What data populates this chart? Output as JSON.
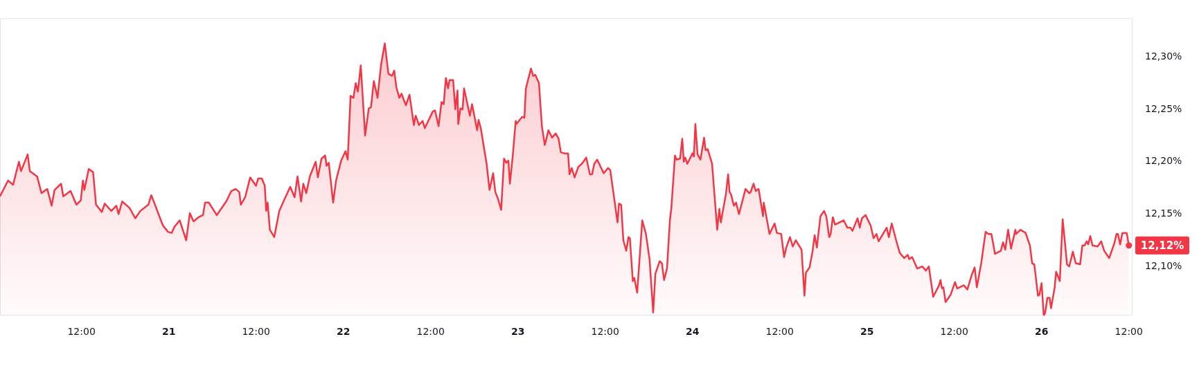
{
  "chart_data": {
    "type": "area",
    "legend": false,
    "grid": false,
    "xlim": [
      "--01-20T00:48",
      "--01-26T12:30"
    ],
    "ylim": [
      12.053,
      12.337
    ],
    "xticks": [
      {
        "value": "--01-20T12:00",
        "label": "12:00"
      },
      {
        "value": "--01-21",
        "label": "21"
      },
      {
        "value": "--01-21T12:00",
        "label": "12:00"
      },
      {
        "value": "--01-22",
        "label": "22"
      },
      {
        "value": "--01-22T12:00",
        "label": "12:00"
      },
      {
        "value": "--01-23",
        "label": "23"
      },
      {
        "value": "--01-23T12:00",
        "label": "12:00"
      },
      {
        "value": "--01-24",
        "label": "24"
      },
      {
        "value": "--01-24T12:00",
        "label": "12:00"
      },
      {
        "value": "--01-25",
        "label": "25"
      },
      {
        "value": "--01-25T12:00",
        "label": "12:00"
      },
      {
        "value": "--01-26",
        "label": "26"
      },
      {
        "value": "--01-26T12:00",
        "label": "12:00"
      }
    ],
    "yticks": [
      {
        "value": 12.1,
        "label": "12,10%"
      },
      {
        "value": 12.15,
        "label": "12,15%"
      },
      {
        "value": 12.2,
        "label": "12,20%"
      },
      {
        "value": 12.25,
        "label": "12,25%"
      },
      {
        "value": 12.3,
        "label": "12,30%"
      }
    ],
    "annotations": [
      {
        "text": "12,12%",
        "x": "--01-26T12:00",
        "y": 12.12
      }
    ],
    "series": [
      {
        "color": "#f23645",
        "x": [
          "--01-20T00:48",
          "--01-20T01:54",
          "--01-20T02:36",
          "--01-20T03:24",
          "--01-20T03:42",
          "--01-20T04:36",
          "--01-20T04:54",
          "--01-20T05:54",
          "--01-20T06:30",
          "--01-20T07:18",
          "--01-20T07:54",
          "--01-20T08:18",
          "--01-20T09:12",
          "--01-20T09:30",
          "--01-20T10:30",
          "--01-20T11:18",
          "--01-20T11:54",
          "--01-20T12:12",
          "--01-20T12:24",
          "--01-20T13:00",
          "--01-20T13:36",
          "--01-20T14:00",
          "--01-20T14:48",
          "--01-20T15:12",
          "--01-20T16:06",
          "--01-20T16:48",
          "--01-20T17:06",
          "--01-20T17:36",
          "--01-20T18:36",
          "--01-20T19:24",
          "--01-20T20:06",
          "--01-20T21:12",
          "--01-20T21:36",
          "--01-20T22:06",
          "--01-20T23:12",
          "--01-20T23:54",
          "--01-21T00:24",
          "--01-21T00:48",
          "--01-21T01:30",
          "--01-21T02:24",
          "--01-21T02:54",
          "--01-21T03:24",
          "--01-21T04:06",
          "--01-21T04:42",
          "--01-21T05:00",
          "--01-21T05:30",
          "--01-21T06:36",
          "--01-21T07:54",
          "--01-21T08:36",
          "--01-21T09:12",
          "--01-21T09:42",
          "--01-21T09:54",
          "--01-21T10:30",
          "--01-21T11:12",
          "--01-21T12:00",
          "--01-21T12:18",
          "--01-21T12:48",
          "--01-21T13:12",
          "--01-21T13:24",
          "--01-21T13:36",
          "--01-21T13:54",
          "--01-21T14:30",
          "--01-21T15:12",
          "--01-21T15:54",
          "--01-21T16:42",
          "--01-21T17:18",
          "--01-21T17:42",
          "--01-21T18:12",
          "--01-21T18:30",
          "--01-21T18:54",
          "--01-21T19:24",
          "--01-21T20:12",
          "--01-21T20:30",
          "--01-21T21:00",
          "--01-21T21:30",
          "--01-21T21:42",
          "--01-21T22:00",
          "--01-21T22:36",
          "--01-21T23:00",
          "--01-21T23:42",
          "--01-22T00:18",
          "--01-22T00:36",
          "--01-22T01:00",
          "--01-22T01:24",
          "--01-22T01:42",
          "--01-22T02:00",
          "--01-22T02:24",
          "--01-22T03:00",
          "--01-22T03:30",
          "--01-22T03:48",
          "--01-22T04:12",
          "--01-22T04:42",
          "--01-22T05:12",
          "--01-22T05:42",
          "--01-22T06:12",
          "--01-22T06:42",
          "--01-22T07:00",
          "--01-22T07:18",
          "--01-22T07:42",
          "--01-22T08:00",
          "--01-22T08:36",
          "--01-22T09:06",
          "--01-22T09:42",
          "--01-22T09:57",
          "--01-22T10:24",
          "--01-22T10:54",
          "--01-22T11:12",
          "--01-22T12:18",
          "--01-22T12:36",
          "--01-22T13:06",
          "--01-22T13:30",
          "--01-22T13:48",
          "--01-22T14:06",
          "--01-22T14:24",
          "--01-22T14:36",
          "--01-22T15:06",
          "--01-22T15:24",
          "--01-22T15:42",
          "--01-22T15:48",
          "--01-22T16:06",
          "--01-22T16:24",
          "--01-22T16:36",
          "--01-22T17:24",
          "--01-22T17:42",
          "--01-22T18:24",
          "--01-22T18:36",
          "--01-22T18:54",
          "--01-22T19:42",
          "--01-22T20:06",
          "--01-22T20:36",
          "--01-22T20:54",
          "--01-22T21:18",
          "--01-22T21:42",
          "--01-22T22:06",
          "--01-22T22:24",
          "--01-22T22:42",
          "--01-22T22:54",
          "--01-22T23:18",
          "--01-22T23:42",
          "--01-22T23:48",
          "--01-23T00:36",
          "--01-23T00:54",
          "--01-23T01:06",
          "--01-23T01:48",
          "--01-23T02:06",
          "--01-23T02:24",
          "--01-23T02:54",
          "--01-23T03:18",
          "--01-23T03:42",
          "--01-23T04:12",
          "--01-23T04:42",
          "--01-23T05:12",
          "--01-23T05:36",
          "--01-23T05:54",
          "--01-23T06:24",
          "--01-23T06:54",
          "--01-23T07:06",
          "--01-23T07:24",
          "--01-23T07:48",
          "--01-23T08:18",
          "--01-23T08:48",
          "--01-23T09:24",
          "--01-23T09:54",
          "--01-23T10:12",
          "--01-23T10:30",
          "--01-23T10:54",
          "--01-23T11:48",
          "--01-23T12:24",
          "--01-23T12:42",
          "--01-23T13:42",
          "--01-23T13:54",
          "--01-23T14:12",
          "--01-23T14:30",
          "--01-23T14:54",
          "--01-23T15:12",
          "--01-23T15:24",
          "--01-23T15:48",
          "--01-23T16:00",
          "--01-23T16:24",
          "--01-23T17:06",
          "--01-23T17:36",
          "--01-23T18:06",
          "--01-23T18:36",
          "--01-23T18:54",
          "--01-23T19:30",
          "--01-23T19:48",
          "--01-23T20:06",
          "--01-23T20:30",
          "--01-23T20:54",
          "--01-23T21:06",
          "--01-23T21:36",
          "--01-23T21:48",
          "--01-23T22:18",
          "--01-23T22:36",
          "--01-23T22:48",
          "--01-23T23:00",
          "--01-23T23:18",
          "--01-24T00:00",
          "--01-24T00:12",
          "--01-24T00:24",
          "--01-24T00:42",
          "--01-24T01:06",
          "--01-24T01:36",
          "--01-24T01:48",
          "--01-24T02:06",
          "--01-24T02:42",
          "--01-24T03:24",
          "--01-24T03:42",
          "--01-24T03:54",
          "--01-24T04:36",
          "--01-24T04:54",
          "--01-24T05:06",
          "--01-24T05:18",
          "--01-24T05:42",
          "--01-24T06:00",
          "--01-24T06:24",
          "--01-24T06:42",
          "--01-24T07:18",
          "--01-24T07:48",
          "--01-24T08:00",
          "--01-24T08:24",
          "--01-24T08:42",
          "--01-24T09:06",
          "--01-24T09:42",
          "--01-24T09:48",
          "--01-24T10:36",
          "--01-24T11:18",
          "--01-24T11:36",
          "--01-24T12:12",
          "--01-24T12:36",
          "--01-24T12:54",
          "--01-24T13:24",
          "--01-24T13:48",
          "--01-24T14:12",
          "--01-24T15:00",
          "--01-24T15:24",
          "--01-24T15:36",
          "--01-24T16:06",
          "--01-24T16:30",
          "--01-24T16:48",
          "--01-24T17:06",
          "--01-24T17:36",
          "--01-24T18:06",
          "--01-24T18:24",
          "--01-24T18:48",
          "--01-24T19:00",
          "--01-24T19:18",
          "--01-24T19:36",
          "--01-24T20:48",
          "--01-24T21:18",
          "--01-24T21:42",
          "--01-24T22:00",
          "--01-24T22:42",
          "--01-24T23:00",
          "--01-24T23:18",
          "--01-24T23:48",
          "--01-25T00:30",
          "--01-25T00:54",
          "--01-25T01:18",
          "--01-25T01:36",
          "--01-25T02:42",
          "--01-25T03:00",
          "--01-25T03:24",
          "--01-25T04:00",
          "--01-25T04:30",
          "--01-25T05:06",
          "--01-25T05:36",
          "--01-25T05:48",
          "--01-25T06:12",
          "--01-25T06:54",
          "--01-25T07:36",
          "--01-25T08:06",
          "--01-25T08:30",
          "--01-25T09:06",
          "--01-25T09:54",
          "--01-25T10:06",
          "--01-25T10:18",
          "--01-25T10:30",
          "--01-25T10:48",
          "--01-25T11:30",
          "--01-25T12:06",
          "--01-25T12:24",
          "--01-25T13:18",
          "--01-25T13:48",
          "--01-25T14:24",
          "--01-25T14:48",
          "--01-25T15:06",
          "--01-25T15:42",
          "--01-25T16:18",
          "--01-25T16:42",
          "--01-25T17:06",
          "--01-25T17:36",
          "--01-25T18:24",
          "--01-25T18:42",
          "--01-25T19:00",
          "--01-25T19:24",
          "--01-25T19:48",
          "--01-25T20:24",
          "--01-25T20:30",
          "--01-25T21:06",
          "--01-25T21:48",
          "--01-25T22:24",
          "--01-25T22:42",
          "--01-25T23:00",
          "--01-25T23:30",
          "--01-25T23:42",
          "--01-26T00:00",
          "--01-26T00:18",
          "--01-26T00:30",
          "--01-26T00:48",
          "--01-26T01:06",
          "--01-26T01:18",
          "--01-26T01:48",
          "--01-26T02:00",
          "--01-26T02:30",
          "--01-26T02:54",
          "--01-26T03:30",
          "--01-26T03:48",
          "--01-26T04:18",
          "--01-26T04:42",
          "--01-26T05:18",
          "--01-26T05:36",
          "--01-26T05:54",
          "--01-26T06:12",
          "--01-26T06:24",
          "--01-26T06:42",
          "--01-26T07:00",
          "--01-26T07:42",
          "--01-26T08:12",
          "--01-26T08:36",
          "--01-26T09:18",
          "--01-26T10:00",
          "--01-26T10:18",
          "--01-26T10:30",
          "--01-26T10:48",
          "--01-26T11:06",
          "--01-26T11:42",
          "--01-26T12:00"
        ],
        "values": [
          12.167,
          12.182,
          12.178,
          12.2,
          12.191,
          12.207,
          12.191,
          12.186,
          12.17,
          12.174,
          12.158,
          12.173,
          12.179,
          12.167,
          12.172,
          12.159,
          12.163,
          12.182,
          12.173,
          12.193,
          12.19,
          12.159,
          12.152,
          12.16,
          12.153,
          12.158,
          12.15,
          12.162,
          12.156,
          12.146,
          12.153,
          12.159,
          12.168,
          12.159,
          12.139,
          12.133,
          12.132,
          12.138,
          12.144,
          12.125,
          12.151,
          12.143,
          12.147,
          12.149,
          12.161,
          12.161,
          12.149,
          12.162,
          12.172,
          12.174,
          12.171,
          12.159,
          12.166,
          12.185,
          12.177,
          12.184,
          12.184,
          12.177,
          12.153,
          12.161,
          12.135,
          12.128,
          12.153,
          12.164,
          12.176,
          12.166,
          12.186,
          12.162,
          12.179,
          12.17,
          12.186,
          12.2,
          12.185,
          12.203,
          12.206,
          12.196,
          12.199,
          12.161,
          12.182,
          12.201,
          12.21,
          12.202,
          12.263,
          12.261,
          12.275,
          12.267,
          12.292,
          12.225,
          12.251,
          12.252,
          12.277,
          12.261,
          12.293,
          12.313,
          12.284,
          12.282,
          12.287,
          12.271,
          12.261,
          12.265,
          12.254,
          12.264,
          12.235,
          12.244,
          12.235,
          12.239,
          12.232,
          12.248,
          12.249,
          12.234,
          12.257,
          12.255,
          12.28,
          12.27,
          12.278,
          12.278,
          12.25,
          12.268,
          12.236,
          12.251,
          12.25,
          12.27,
          12.244,
          12.255,
          12.23,
          12.24,
          12.232,
          12.198,
          12.173,
          12.189,
          12.171,
          12.164,
          12.154,
          12.203,
          12.199,
          12.201,
          12.179,
          12.206,
          12.239,
          12.236,
          12.243,
          12.242,
          12.27,
          12.289,
          12.282,
          12.283,
          12.275,
          12.234,
          12.216,
          12.23,
          12.223,
          12.227,
          12.222,
          12.209,
          12.208,
          12.208,
          12.188,
          12.194,
          12.185,
          12.195,
          12.198,
          12.204,
          12.188,
          12.188,
          12.198,
          12.202,
          12.189,
          12.194,
          12.192,
          12.142,
          12.16,
          12.159,
          12.125,
          12.115,
          12.128,
          12.127,
          12.086,
          12.089,
          12.075,
          12.144,
          12.131,
          12.107,
          12.056,
          12.093,
          12.105,
          12.103,
          12.087,
          12.098,
          12.144,
          12.156,
          12.206,
          12.202,
          12.203,
          12.222,
          12.2,
          12.204,
          12.198,
          12.208,
          12.205,
          12.236,
          12.207,
          12.202,
          12.223,
          12.211,
          12.212,
          12.198,
          12.135,
          12.155,
          12.142,
          12.169,
          12.188,
          12.171,
          12.169,
          12.158,
          12.161,
          12.15,
          12.158,
          12.174,
          12.17,
          12.171,
          12.179,
          12.172,
          12.174,
          12.148,
          12.161,
          12.131,
          12.141,
          12.132,
          12.131,
          12.109,
          12.118,
          12.128,
          12.119,
          12.125,
          12.116,
          12.072,
          12.094,
          12.099,
          12.114,
          12.13,
          12.118,
          12.148,
          12.153,
          12.148,
          12.128,
          12.131,
          12.147,
          12.14,
          12.144,
          12.137,
          12.137,
          12.134,
          12.146,
          12.137,
          12.146,
          12.149,
          12.139,
          12.127,
          12.131,
          12.124,
          12.137,
          12.128,
          12.141,
          12.125,
          12.113,
          12.108,
          12.111,
          12.107,
          12.109,
          12.098,
          12.1,
          12.096,
          12.1,
          12.071,
          12.082,
          12.087,
          12.079,
          12.08,
          12.066,
          12.073,
          12.085,
          12.079,
          12.082,
          12.078,
          12.092,
          12.099,
          12.08,
          12.103,
          12.133,
          12.131,
          12.131,
          12.112,
          12.115,
          12.123,
          12.116,
          12.135,
          12.117,
          12.135,
          12.131,
          12.135,
          12.132,
          12.12,
          12.103,
          12.102,
          12.072,
          12.073,
          12.084,
          12.053,
          12.056,
          12.07,
          12.07,
          12.06,
          12.08,
          12.095,
          12.086,
          12.145,
          12.102,
          12.1,
          12.114,
          12.103,
          12.102,
          12.12,
          12.12,
          12.124,
          12.121,
          12.129,
          12.12,
          12.119,
          12.124,
          12.115,
          12.108,
          12.122,
          12.131,
          12.131,
          12.121,
          12.132,
          12.132,
          12.12
        ]
      }
    ]
  }
}
